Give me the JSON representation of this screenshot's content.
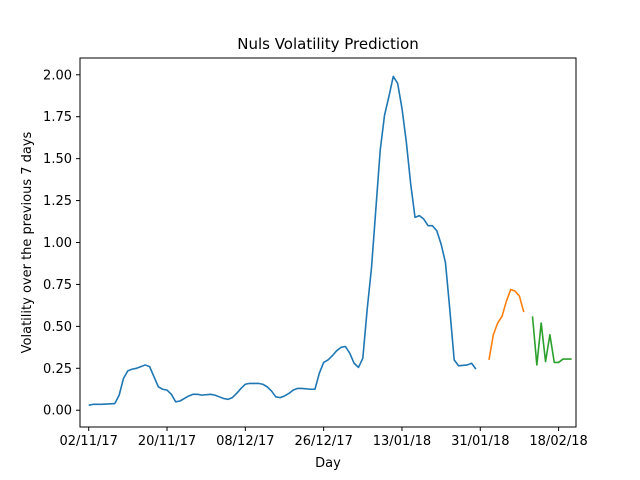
{
  "chart_data": {
    "type": "line",
    "title": "Nuls Volatility Prediction",
    "xlabel": "Day",
    "ylabel": "Volatility over the previous 7 days",
    "x_type": "date",
    "xlim": [
      "2017-10-31",
      "2018-02-22"
    ],
    "ylim": [
      -0.1,
      2.1
    ],
    "grid": false,
    "x_ticks": [
      {
        "date": "2017-11-02",
        "label": "02/11/17"
      },
      {
        "date": "2017-11-20",
        "label": "20/11/17"
      },
      {
        "date": "2017-12-08",
        "label": "08/12/17"
      },
      {
        "date": "2017-12-26",
        "label": "26/12/17"
      },
      {
        "date": "2018-01-13",
        "label": "13/01/18"
      },
      {
        "date": "2018-01-31",
        "label": "31/01/18"
      },
      {
        "date": "2018-02-18",
        "label": "18/02/18"
      }
    ],
    "y_ticks": [
      {
        "value": 0.0,
        "label": "0.00"
      },
      {
        "value": 0.25,
        "label": "0.25"
      },
      {
        "value": 0.5,
        "label": "0.50"
      },
      {
        "value": 0.75,
        "label": "0.75"
      },
      {
        "value": 1.0,
        "label": "1.00"
      },
      {
        "value": 1.25,
        "label": "1.25"
      },
      {
        "value": 1.5,
        "label": "1.50"
      },
      {
        "value": 1.75,
        "label": "1.75"
      },
      {
        "value": 2.0,
        "label": "2.00"
      }
    ],
    "series": [
      {
        "color": "#1f77b4",
        "points": [
          [
            "2017-11-02",
            0.03
          ],
          [
            "2017-11-03",
            0.035
          ],
          [
            "2017-11-05",
            0.035
          ],
          [
            "2017-11-08",
            0.04
          ],
          [
            "2017-11-09",
            0.09
          ],
          [
            "2017-11-10",
            0.19
          ],
          [
            "2017-11-11",
            0.235
          ],
          [
            "2017-11-12",
            0.245
          ],
          [
            "2017-11-13",
            0.25
          ],
          [
            "2017-11-14",
            0.26
          ],
          [
            "2017-11-15",
            0.27
          ],
          [
            "2017-11-16",
            0.26
          ],
          [
            "2017-11-17",
            0.2
          ],
          [
            "2017-11-18",
            0.14
          ],
          [
            "2017-11-19",
            0.125
          ],
          [
            "2017-11-20",
            0.12
          ],
          [
            "2017-11-21",
            0.095
          ],
          [
            "2017-11-22",
            0.05
          ],
          [
            "2017-11-23",
            0.055
          ],
          [
            "2017-11-24",
            0.07
          ],
          [
            "2017-11-25",
            0.085
          ],
          [
            "2017-11-26",
            0.095
          ],
          [
            "2017-11-27",
            0.095
          ],
          [
            "2017-11-28",
            0.09
          ],
          [
            "2017-11-30",
            0.095
          ],
          [
            "2017-12-01",
            0.09
          ],
          [
            "2017-12-02",
            0.08
          ],
          [
            "2017-12-03",
            0.07
          ],
          [
            "2017-12-04",
            0.065
          ],
          [
            "2017-12-05",
            0.075
          ],
          [
            "2017-12-06",
            0.1
          ],
          [
            "2017-12-07",
            0.13
          ],
          [
            "2017-12-08",
            0.155
          ],
          [
            "2017-12-09",
            0.16
          ],
          [
            "2017-12-11",
            0.16
          ],
          [
            "2017-12-12",
            0.155
          ],
          [
            "2017-12-13",
            0.14
          ],
          [
            "2017-12-14",
            0.115
          ],
          [
            "2017-12-15",
            0.08
          ],
          [
            "2017-12-16",
            0.075
          ],
          [
            "2017-12-17",
            0.085
          ],
          [
            "2017-12-18",
            0.1
          ],
          [
            "2017-12-19",
            0.12
          ],
          [
            "2017-12-20",
            0.13
          ],
          [
            "2017-12-21",
            0.13
          ],
          [
            "2017-12-23",
            0.125
          ],
          [
            "2017-12-24",
            0.125
          ],
          [
            "2017-12-25",
            0.22
          ],
          [
            "2017-12-26",
            0.285
          ],
          [
            "2017-12-27",
            0.3
          ],
          [
            "2017-12-28",
            0.325
          ],
          [
            "2017-12-29",
            0.355
          ],
          [
            "2017-12-30",
            0.375
          ],
          [
            "2017-12-31",
            0.38
          ],
          [
            "2018-01-01",
            0.34
          ],
          [
            "2018-01-02",
            0.28
          ],
          [
            "2018-01-03",
            0.255
          ],
          [
            "2018-01-04",
            0.31
          ],
          [
            "2018-01-05",
            0.6
          ],
          [
            "2018-01-06",
            0.85
          ],
          [
            "2018-01-07",
            1.2
          ],
          [
            "2018-01-08",
            1.55
          ],
          [
            "2018-01-09",
            1.76
          ],
          [
            "2018-01-10",
            1.87
          ],
          [
            "2018-01-11",
            1.99
          ],
          [
            "2018-01-12",
            1.95
          ],
          [
            "2018-01-13",
            1.8
          ],
          [
            "2018-01-14",
            1.6
          ],
          [
            "2018-01-15",
            1.35
          ],
          [
            "2018-01-16",
            1.15
          ],
          [
            "2018-01-17",
            1.16
          ],
          [
            "2018-01-18",
            1.14
          ],
          [
            "2018-01-19",
            1.1
          ],
          [
            "2018-01-20",
            1.1
          ],
          [
            "2018-01-21",
            1.07
          ],
          [
            "2018-01-22",
            0.99
          ],
          [
            "2018-01-23",
            0.88
          ],
          [
            "2018-01-24",
            0.6
          ],
          [
            "2018-01-25",
            0.3
          ],
          [
            "2018-01-26",
            0.265
          ],
          [
            "2018-01-28",
            0.27
          ],
          [
            "2018-01-29",
            0.28
          ],
          [
            "2018-01-30",
            0.245
          ]
        ]
      },
      {
        "color": "#ff7f0e",
        "points": [
          [
            "2018-02-02",
            0.3
          ],
          [
            "2018-02-03",
            0.45
          ],
          [
            "2018-02-04",
            0.52
          ],
          [
            "2018-02-05",
            0.56
          ],
          [
            "2018-02-06",
            0.65
          ],
          [
            "2018-02-07",
            0.72
          ],
          [
            "2018-02-08",
            0.71
          ],
          [
            "2018-02-09",
            0.68
          ],
          [
            "2018-02-10",
            0.585
          ]
        ]
      },
      {
        "color": "#2ca02c",
        "points": [
          [
            "2018-02-12",
            0.56
          ],
          [
            "2018-02-13",
            0.27
          ],
          [
            "2018-02-14",
            0.52
          ],
          [
            "2018-02-15",
            0.29
          ],
          [
            "2018-02-16",
            0.45
          ],
          [
            "2018-02-17",
            0.285
          ],
          [
            "2018-02-18",
            0.285
          ],
          [
            "2018-02-19",
            0.305
          ],
          [
            "2018-02-21",
            0.305
          ]
        ]
      }
    ]
  }
}
